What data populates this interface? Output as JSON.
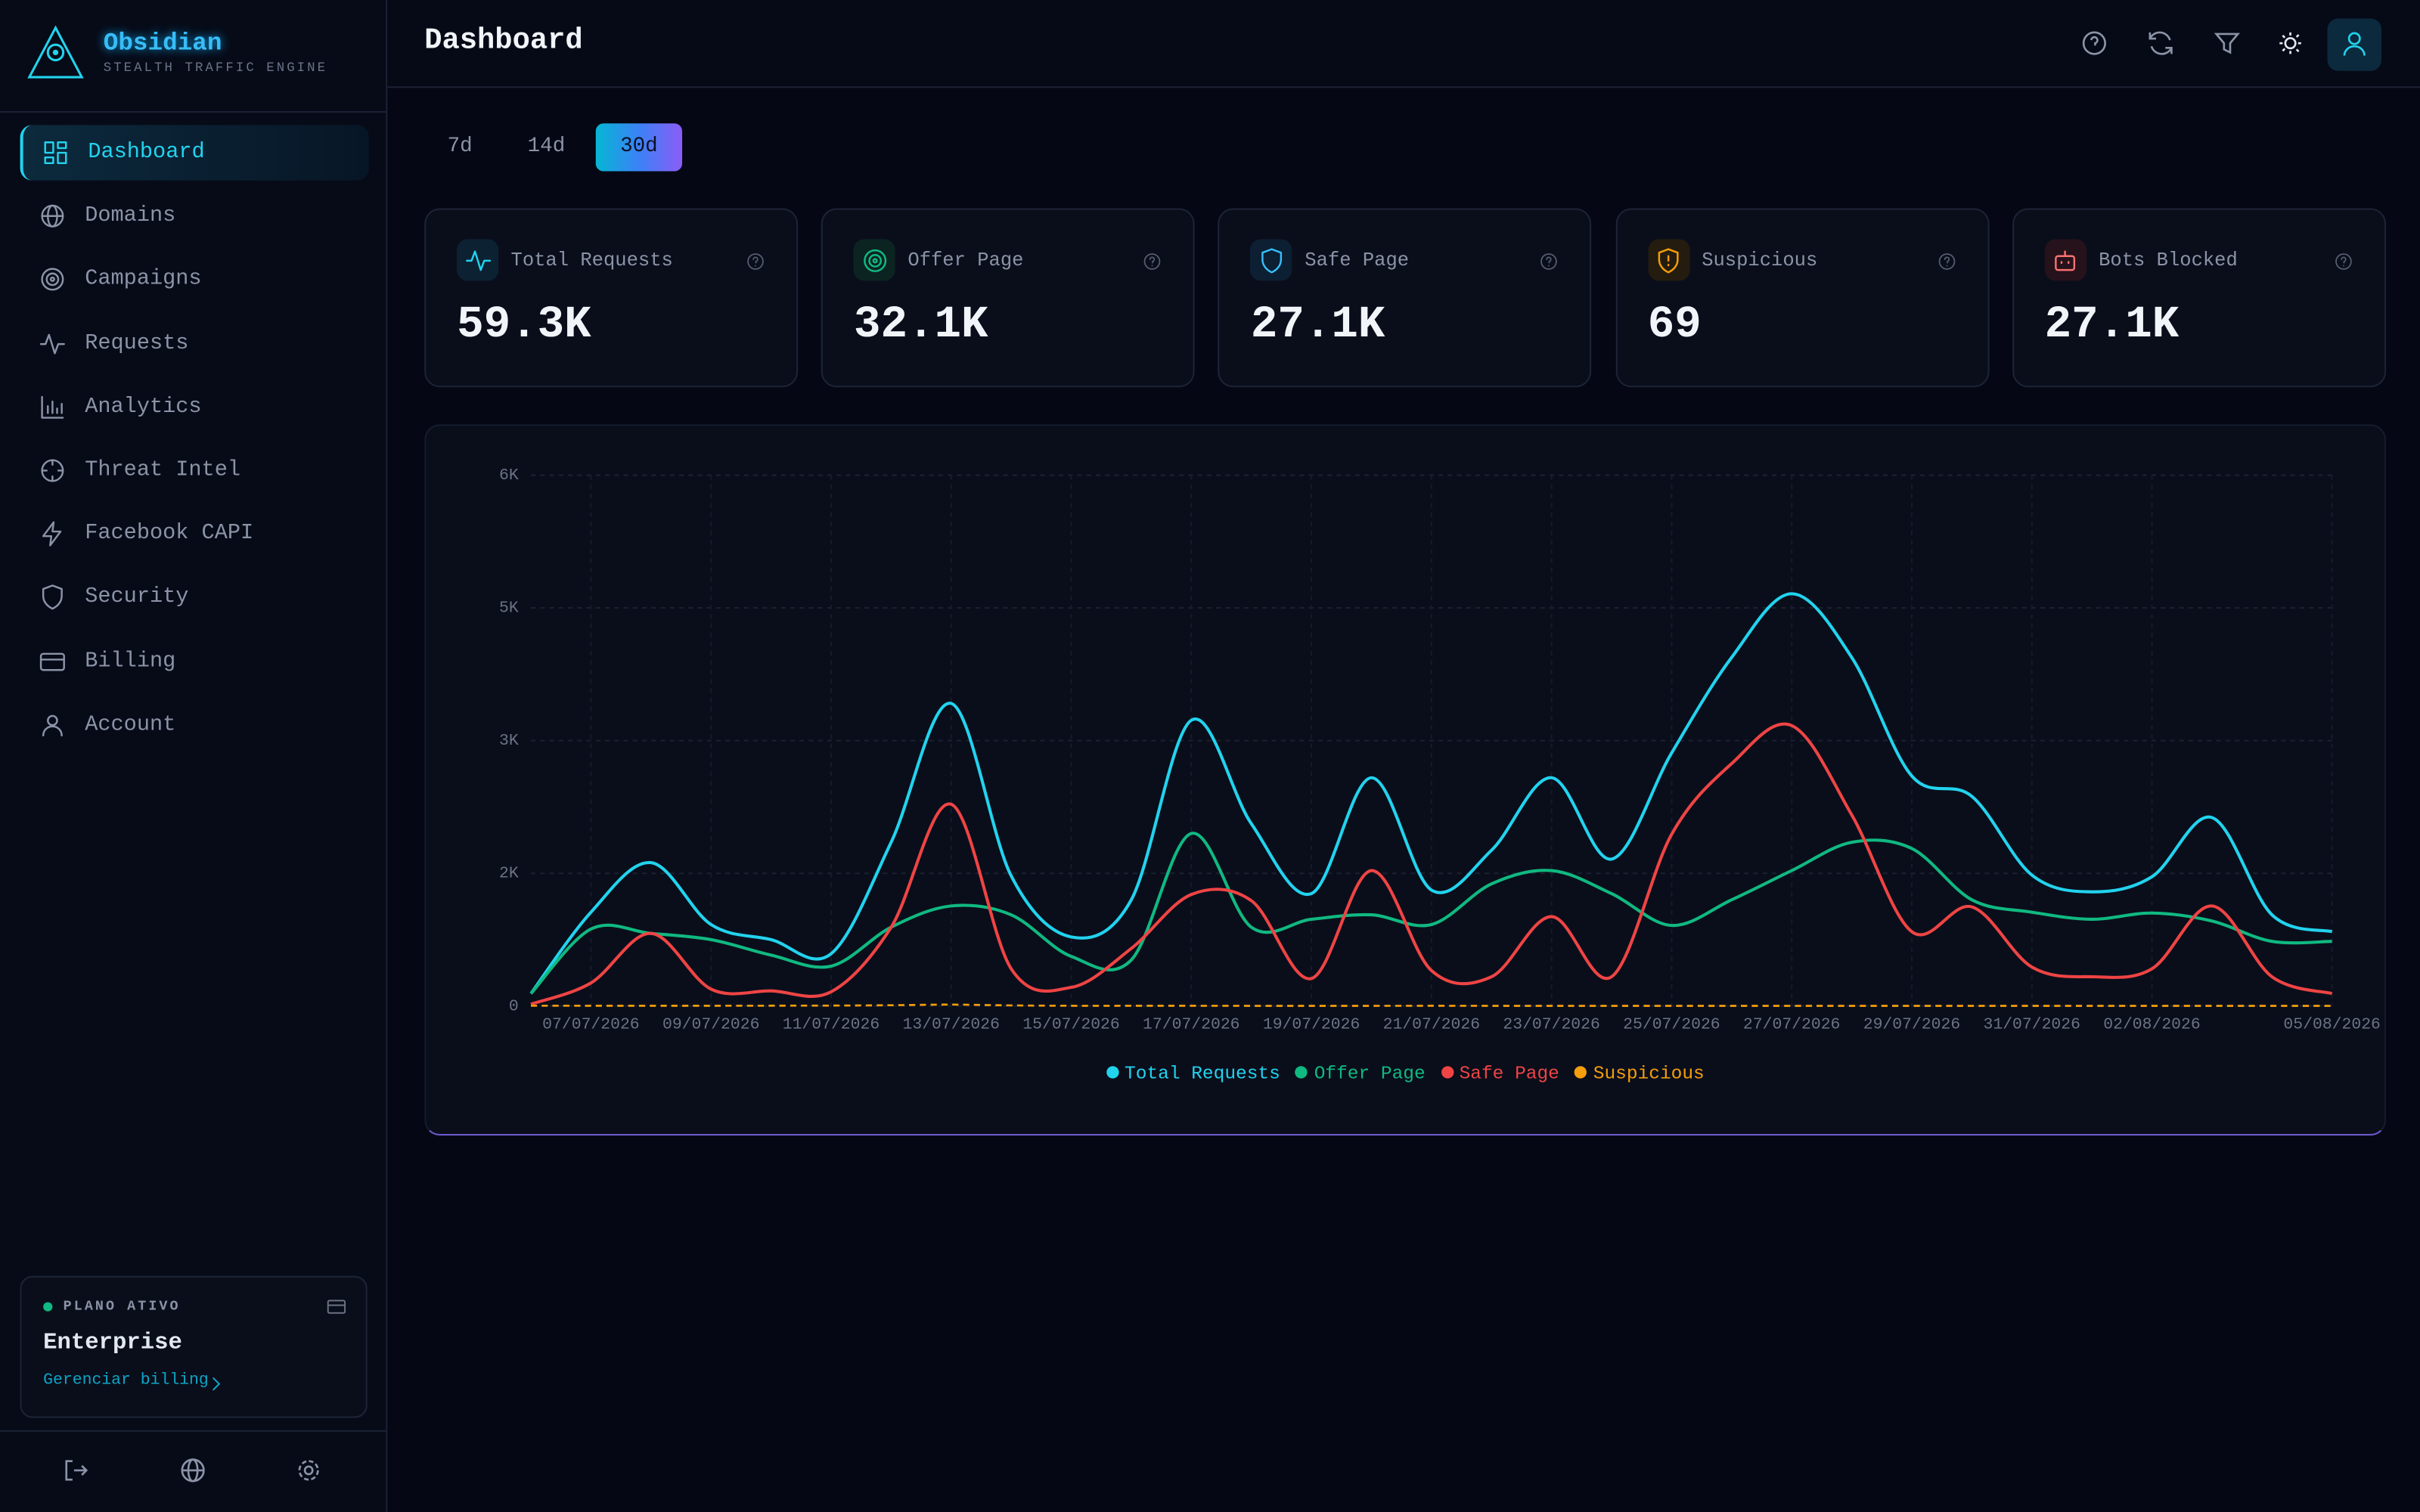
{
  "brand": {
    "name": "Obsidian",
    "tagline": "STEALTH TRAFFIC ENGINE"
  },
  "nav": [
    "Dashboard",
    "Domains",
    "Campaigns",
    "Requests",
    "Analytics",
    "Threat Intel",
    "Facebook CAPI",
    "Security",
    "Billing",
    "Account"
  ],
  "plan": {
    "label": "PLANO ATIVO",
    "name": "Enterprise",
    "link": "Gerenciar billing"
  },
  "header": {
    "title": "Dashboard"
  },
  "ranges": [
    "7d",
    "14d",
    "30d"
  ],
  "stats": [
    {
      "label": "Total Requests",
      "value": "59.3K"
    },
    {
      "label": "Offer Page",
      "value": "32.1K"
    },
    {
      "label": "Safe Page",
      "value": "27.1K"
    },
    {
      "label": "Suspicious",
      "value": "69"
    },
    {
      "label": "Bots Blocked",
      "value": "27.1K"
    }
  ],
  "chart_data": {
    "type": "line",
    "categories": [
      null,
      "07/07/2026",
      null,
      "09/07/2026",
      null,
      "11/07/2026",
      null,
      "13/07/2026",
      null,
      "15/07/2026",
      null,
      "17/07/2026",
      null,
      "19/07/2026",
      null,
      "21/07/2026",
      null,
      "23/07/2026",
      null,
      "25/07/2026",
      null,
      "27/07/2026",
      null,
      "29/07/2026",
      null,
      "31/07/2026",
      null,
      "02/08/2026",
      null,
      null,
      "05/08/2026"
    ],
    "ylim": [
      0,
      6000
    ],
    "yticks": [
      0,
      {
        "value": 1500,
        "label": "2K"
      },
      {
        "value": 3000,
        "label": "3K"
      },
      {
        "value": 4500,
        "label": "5K"
      },
      {
        "value": 6000,
        "label": "6K"
      }
    ],
    "grid": true,
    "series": [
      {
        "name": "Total Requests",
        "color": "#22d3ee",
        "values": [
          140,
          1060,
          1620,
          920,
          750,
          590,
          1850,
          3420,
          1470,
          780,
          1200,
          3230,
          2060,
          1270,
          2580,
          1310,
          1760,
          2580,
          1660,
          2860,
          3940,
          4660,
          3940,
          2600,
          2370,
          1480,
          1290,
          1460,
          2130,
          1030,
          840
        ]
      },
      {
        "name": "Offer Page",
        "color": "#10b981",
        "values": [
          140,
          870,
          820,
          750,
          575,
          450,
          890,
          1130,
          1030,
          560,
          520,
          1950,
          890,
          980,
          1030,
          920,
          1380,
          1530,
          1270,
          910,
          1200,
          1530,
          1850,
          1780,
          1200,
          1060,
          980,
          1050,
          960,
          730,
          730
        ]
      },
      {
        "name": "Safe Page",
        "color": "#ef4444",
        "values": [
          20,
          260,
          820,
          190,
          170,
          160,
          890,
          2280,
          420,
          210,
          650,
          1260,
          1190,
          310,
          1530,
          400,
          330,
          1010,
          330,
          1940,
          2740,
          3170,
          2160,
          840,
          1120,
          440,
          330,
          420,
          1130,
          330,
          140
        ]
      },
      {
        "name": "Suspicious",
        "color": "#f59e0b",
        "dashed": true,
        "values": [
          3,
          2,
          2,
          2,
          3,
          4,
          8,
          15,
          6,
          2,
          2,
          2,
          1,
          1,
          1,
          2,
          1,
          1,
          1,
          1,
          1,
          1,
          1,
          1,
          1,
          1,
          1,
          1,
          1,
          1,
          1
        ]
      }
    ]
  }
}
